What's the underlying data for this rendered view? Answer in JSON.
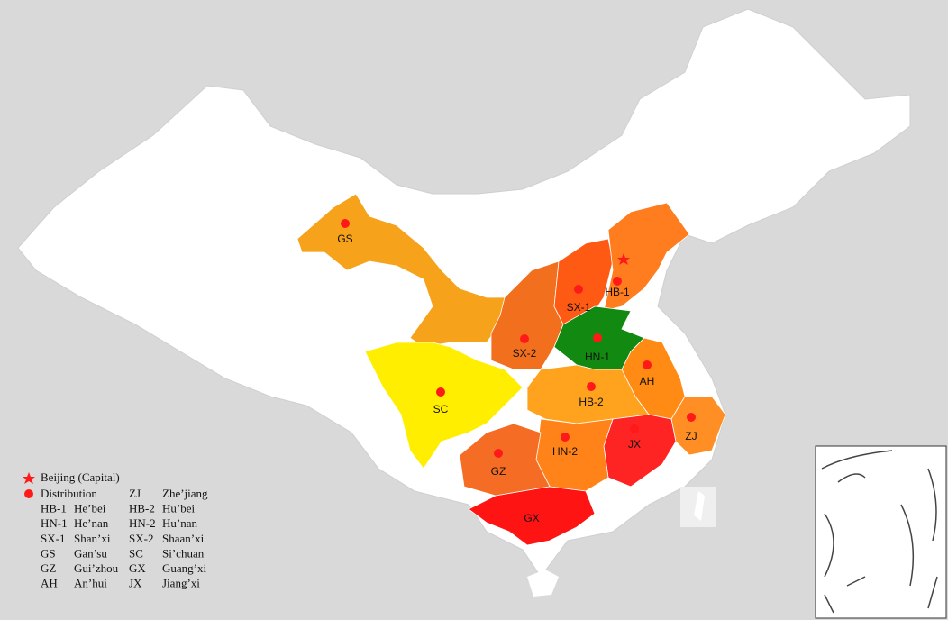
{
  "map": {
    "provinces": [
      {
        "label": "GS"
      },
      {
        "label": "SX-1"
      },
      {
        "label": "HB-1"
      },
      {
        "label": "SX-2"
      },
      {
        "label": "HN-1"
      },
      {
        "label": "AH"
      },
      {
        "label": "HB-2"
      },
      {
        "label": "SC"
      },
      {
        "label": "ZJ"
      },
      {
        "label": "JX"
      },
      {
        "label": "HN-2"
      },
      {
        "label": "GZ"
      },
      {
        "label": "GX"
      }
    ],
    "legend": {
      "capital": "Beijing (Capital)",
      "distribution": "Distribution",
      "entries": [
        {
          "code": "ZJ",
          "name": "Zhe’jiang"
        },
        {
          "code": "HB-1",
          "name": "He’bei"
        },
        {
          "code": "HB-2",
          "name": "Hu’bei"
        },
        {
          "code": "HN-1",
          "name": "He’nan"
        },
        {
          "code": "HN-2",
          "name": "Hu’nan"
        },
        {
          "code": "SX-1",
          "name": "Shan’xi"
        },
        {
          "code": "SX-2",
          "name": "Shaan’xi"
        },
        {
          "code": "GS",
          "name": "Gan’su"
        },
        {
          "code": "SC",
          "name": "Si’chuan"
        },
        {
          "code": "GZ",
          "name": "Gui’zhou"
        },
        {
          "code": "GX",
          "name": "Guang’xi"
        },
        {
          "code": "AH",
          "name": "An’hui"
        },
        {
          "code": "JX",
          "name": "Jiang’xi"
        }
      ]
    }
  }
}
